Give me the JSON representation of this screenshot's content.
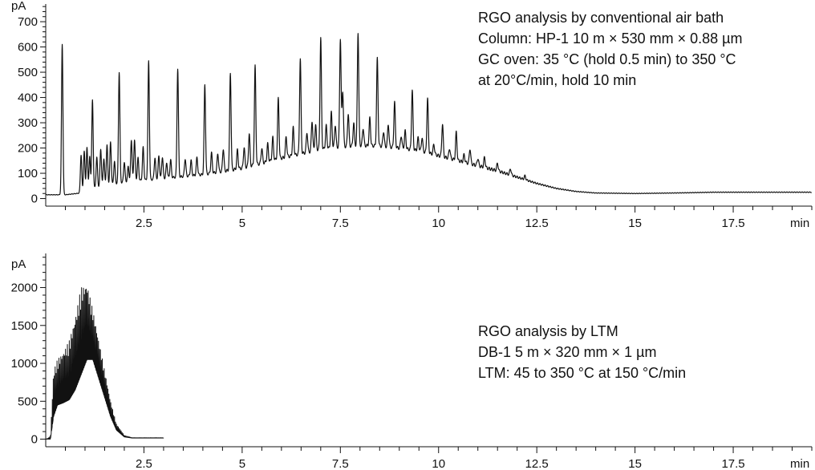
{
  "chart_data": [
    {
      "type": "line",
      "yunit": "pA",
      "xunit": "min",
      "xlim": [
        0,
        19.5
      ],
      "ylim": [
        -30,
        770
      ],
      "xticks": [
        2.5,
        5,
        7.5,
        10,
        12.5,
        15,
        17.5
      ],
      "xtick_labels": [
        "2.5",
        "5",
        "7.5",
        "10",
        "12.5",
        "15",
        "17.5"
      ],
      "yticks": [
        0,
        100,
        200,
        300,
        400,
        500,
        600,
        700
      ],
      "ytick_labels": [
        "0",
        "100",
        "200",
        "300",
        "400",
        "500",
        "600",
        "700"
      ],
      "annotation": [
        "RGO analysis by conventional air bath",
        "Column: HP-1 10 m × 530 mm × 0.88 µm",
        "GC oven: 35 °C (hold 0.5 min) to 350 °C",
        "at 20°C/min, hold 10 min"
      ],
      "color": "#111111",
      "baseline": {
        "x": [
          0,
          0.5,
          0.9,
          1.2,
          2,
          3,
          4,
          5,
          6,
          7,
          7.5,
          8,
          8.5,
          9,
          9.5,
          10,
          10.5,
          11,
          11.5,
          12,
          12.5,
          13,
          13.5,
          14,
          15,
          16,
          17,
          18,
          19.5
        ],
        "y": [
          15,
          15,
          22,
          40,
          65,
          80,
          95,
          120,
          160,
          195,
          205,
          210,
          208,
          200,
          190,
          170,
          150,
          130,
          110,
          85,
          60,
          40,
          28,
          22,
          20,
          22,
          25,
          25,
          25
        ]
      },
      "peaks": [
        {
          "x": 0.42,
          "h": 595
        },
        {
          "x": 0.9,
          "h": 150
        },
        {
          "x": 0.98,
          "h": 160
        },
        {
          "x": 1.05,
          "h": 170
        },
        {
          "x": 1.12,
          "h": 130
        },
        {
          "x": 1.19,
          "h": 350
        },
        {
          "x": 1.3,
          "h": 120
        },
        {
          "x": 1.4,
          "h": 150
        },
        {
          "x": 1.48,
          "h": 110
        },
        {
          "x": 1.56,
          "h": 160
        },
        {
          "x": 1.65,
          "h": 170
        },
        {
          "x": 1.75,
          "h": 90
        },
        {
          "x": 1.87,
          "h": 440
        },
        {
          "x": 2.0,
          "h": 80
        },
        {
          "x": 2.1,
          "h": 60
        },
        {
          "x": 2.18,
          "h": 165
        },
        {
          "x": 2.26,
          "h": 165
        },
        {
          "x": 2.35,
          "h": 90
        },
        {
          "x": 2.48,
          "h": 130
        },
        {
          "x": 2.62,
          "h": 470
        },
        {
          "x": 2.78,
          "h": 85
        },
        {
          "x": 2.88,
          "h": 90
        },
        {
          "x": 2.97,
          "h": 85
        },
        {
          "x": 3.08,
          "h": 60
        },
        {
          "x": 3.18,
          "h": 70
        },
        {
          "x": 3.36,
          "h": 430
        },
        {
          "x": 3.55,
          "h": 70
        },
        {
          "x": 3.7,
          "h": 60
        },
        {
          "x": 3.85,
          "h": 70
        },
        {
          "x": 4.05,
          "h": 355
        },
        {
          "x": 4.22,
          "h": 80
        },
        {
          "x": 4.38,
          "h": 75
        },
        {
          "x": 4.52,
          "h": 90
        },
        {
          "x": 4.7,
          "h": 385
        },
        {
          "x": 4.88,
          "h": 75
        },
        {
          "x": 5.05,
          "h": 80
        },
        {
          "x": 5.18,
          "h": 130
        },
        {
          "x": 5.33,
          "h": 390
        },
        {
          "x": 5.5,
          "h": 60
        },
        {
          "x": 5.65,
          "h": 70
        },
        {
          "x": 5.78,
          "h": 90
        },
        {
          "x": 5.92,
          "h": 240
        },
        {
          "x": 6.12,
          "h": 80
        },
        {
          "x": 6.3,
          "h": 110
        },
        {
          "x": 6.48,
          "h": 375
        },
        {
          "x": 6.65,
          "h": 80
        },
        {
          "x": 6.78,
          "h": 120
        },
        {
          "x": 6.87,
          "h": 100
        },
        {
          "x": 7.0,
          "h": 440
        },
        {
          "x": 7.14,
          "h": 90
        },
        {
          "x": 7.27,
          "h": 140
        },
        {
          "x": 7.37,
          "h": 90
        },
        {
          "x": 7.5,
          "h": 430
        },
        {
          "x": 7.56,
          "h": 220
        },
        {
          "x": 7.7,
          "h": 130
        },
        {
          "x": 7.84,
          "h": 90
        },
        {
          "x": 7.95,
          "h": 450
        },
        {
          "x": 8.08,
          "h": 70
        },
        {
          "x": 8.25,
          "h": 110
        },
        {
          "x": 8.44,
          "h": 345
        },
        {
          "x": 8.6,
          "h": 60
        },
        {
          "x": 8.72,
          "h": 90
        },
        {
          "x": 8.88,
          "h": 180
        },
        {
          "x": 9.05,
          "h": 50
        },
        {
          "x": 9.15,
          "h": 70
        },
        {
          "x": 9.33,
          "h": 235
        },
        {
          "x": 9.48,
          "h": 50
        },
        {
          "x": 9.58,
          "h": 55
        },
        {
          "x": 9.72,
          "h": 215
        },
        {
          "x": 9.88,
          "h": 40
        },
        {
          "x": 10.1,
          "h": 130
        },
        {
          "x": 10.28,
          "h": 40
        },
        {
          "x": 10.45,
          "h": 110
        },
        {
          "x": 10.65,
          "h": 30
        },
        {
          "x": 10.8,
          "h": 60
        },
        {
          "x": 11.0,
          "h": 30
        },
        {
          "x": 11.17,
          "h": 40
        },
        {
          "x": 11.5,
          "h": 30
        },
        {
          "x": 11.83,
          "h": 25
        },
        {
          "x": 12.2,
          "h": 15
        }
      ]
    },
    {
      "type": "line",
      "yunit": "pA",
      "xunit": "min",
      "xlim": [
        0,
        19.5
      ],
      "ylim": [
        -100,
        2450
      ],
      "xticks": [
        2.5,
        5,
        7.5,
        10,
        12.5,
        15,
        17.5
      ],
      "xtick_labels": [
        "2.5",
        "5",
        "7.5",
        "10",
        "12.5",
        "15",
        "17.5"
      ],
      "yticks": [
        0,
        500,
        1000,
        1500,
        2000
      ],
      "ytick_labels": [
        "0",
        "500",
        "1000",
        "1500",
        "2000"
      ],
      "annotation": [
        "RGO analysis by LTM",
        "DB-1 5 m × 320 mm × 1 µm",
        "LTM: 45 to 350 °C at 150 °C/min"
      ],
      "color": "#111111",
      "data_extent": [
        0,
        3.0
      ],
      "envelope": {
        "x": [
          0,
          0.08,
          0.12,
          0.2,
          0.3,
          0.45,
          0.6,
          0.75,
          0.9,
          1.05,
          1.2,
          1.35,
          1.5,
          1.65,
          1.8,
          2.0,
          2.2,
          3.0
        ],
        "lo": [
          0,
          0,
          0,
          300,
          450,
          480,
          520,
          650,
          850,
          1050,
          1050,
          800,
          550,
          300,
          120,
          30,
          15,
          15
        ],
        "hi": [
          0,
          20,
          50,
          900,
          1050,
          1150,
          1300,
          1600,
          2000,
          2050,
          1700,
          1300,
          900,
          500,
          200,
          50,
          20,
          20
        ]
      },
      "peak_spacing": 0.024
    }
  ]
}
